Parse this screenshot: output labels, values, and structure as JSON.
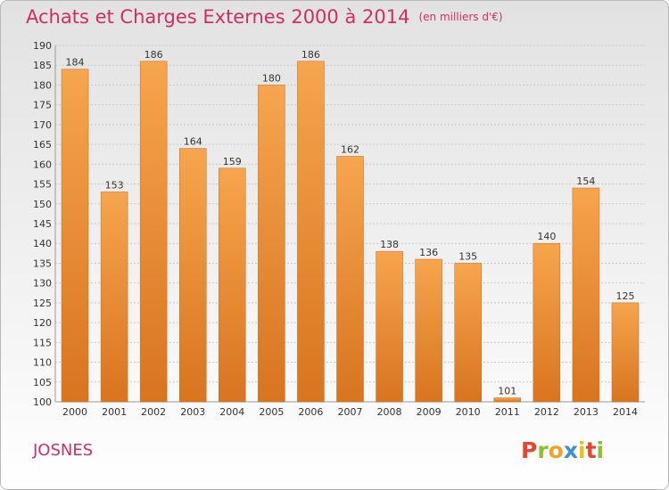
{
  "header": {
    "title": "Achats et Charges Externes 2000 à 2014",
    "unit": "(en milliers d'€)"
  },
  "footer": {
    "commune": "JOSNES",
    "logo": "Proxiti",
    "logo_colors": [
      "#e8452f",
      "#8dbf2e",
      "#f0a22e",
      "#3f8fd1",
      "#e0c41f",
      "#e8452f",
      "#8dbf2e"
    ]
  },
  "colors": {
    "bar_light": "#f6a54e",
    "bar_dark": "#d9741f",
    "title": "#cf2e62",
    "grid": "#c9c9c9"
  },
  "chart_data": {
    "type": "bar",
    "title": "Achats et Charges Externes 2000 à 2014",
    "subtitle": "(en milliers d'€)",
    "categories": [
      "2000",
      "2001",
      "2002",
      "2003",
      "2004",
      "2005",
      "2006",
      "2007",
      "2008",
      "2009",
      "2010",
      "2011",
      "2012",
      "2013",
      "2014"
    ],
    "values": [
      184,
      153,
      186,
      164,
      159,
      180,
      186,
      162,
      138,
      136,
      135,
      101,
      140,
      154,
      125
    ],
    "ylim": [
      100,
      190
    ],
    "yticks": [
      100,
      105,
      110,
      115,
      120,
      125,
      130,
      135,
      140,
      145,
      150,
      155,
      160,
      165,
      170,
      175,
      180,
      185,
      190
    ],
    "grid": true,
    "data_labels": true
  }
}
